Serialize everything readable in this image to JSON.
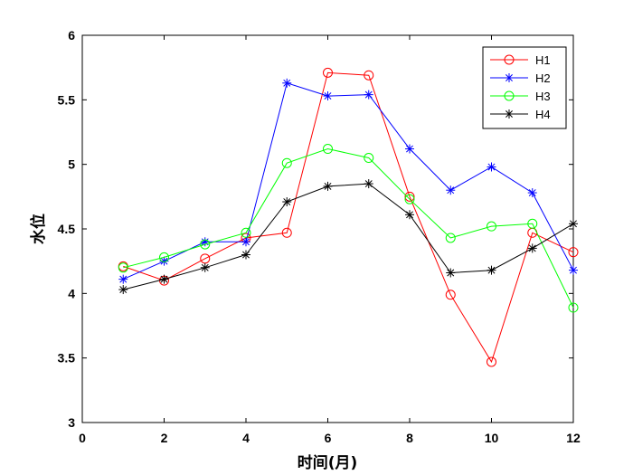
{
  "chart_data": {
    "type": "line",
    "xlabel": "时间(月)",
    "ylabel": "水位",
    "xlim": [
      0,
      12
    ],
    "ylim": [
      3,
      6
    ],
    "xticks": [
      0,
      2,
      4,
      6,
      8,
      10,
      12
    ],
    "yticks": [
      3,
      3.5,
      4,
      4.5,
      5,
      5.5,
      6
    ],
    "x": [
      1,
      2,
      3,
      4,
      5,
      6,
      7,
      8,
      9,
      10,
      11,
      12
    ],
    "grid": false,
    "legend_position": "top-right",
    "series": [
      {
        "name": "H1",
        "color": "#ff0000",
        "marker": "circle",
        "values": [
          4.21,
          4.1,
          4.27,
          4.43,
          4.47,
          5.71,
          5.69,
          4.75,
          3.99,
          3.47,
          4.47,
          4.32
        ]
      },
      {
        "name": "H2",
        "color": "#0000ff",
        "marker": "asterisk",
        "values": [
          4.11,
          4.25,
          4.4,
          4.4,
          5.63,
          5.53,
          5.54,
          5.12,
          4.8,
          4.98,
          4.78,
          4.18
        ]
      },
      {
        "name": "H3",
        "color": "#00ff00",
        "marker": "circle",
        "values": [
          4.2,
          4.28,
          4.38,
          4.47,
          5.01,
          5.12,
          5.05,
          4.73,
          4.43,
          4.52,
          4.54,
          3.89
        ]
      },
      {
        "name": "H4",
        "color": "#000000",
        "marker": "asterisk",
        "values": [
          4.03,
          4.11,
          4.2,
          4.3,
          4.71,
          4.83,
          4.85,
          4.61,
          4.16,
          4.18,
          4.35,
          4.54
        ]
      }
    ]
  }
}
